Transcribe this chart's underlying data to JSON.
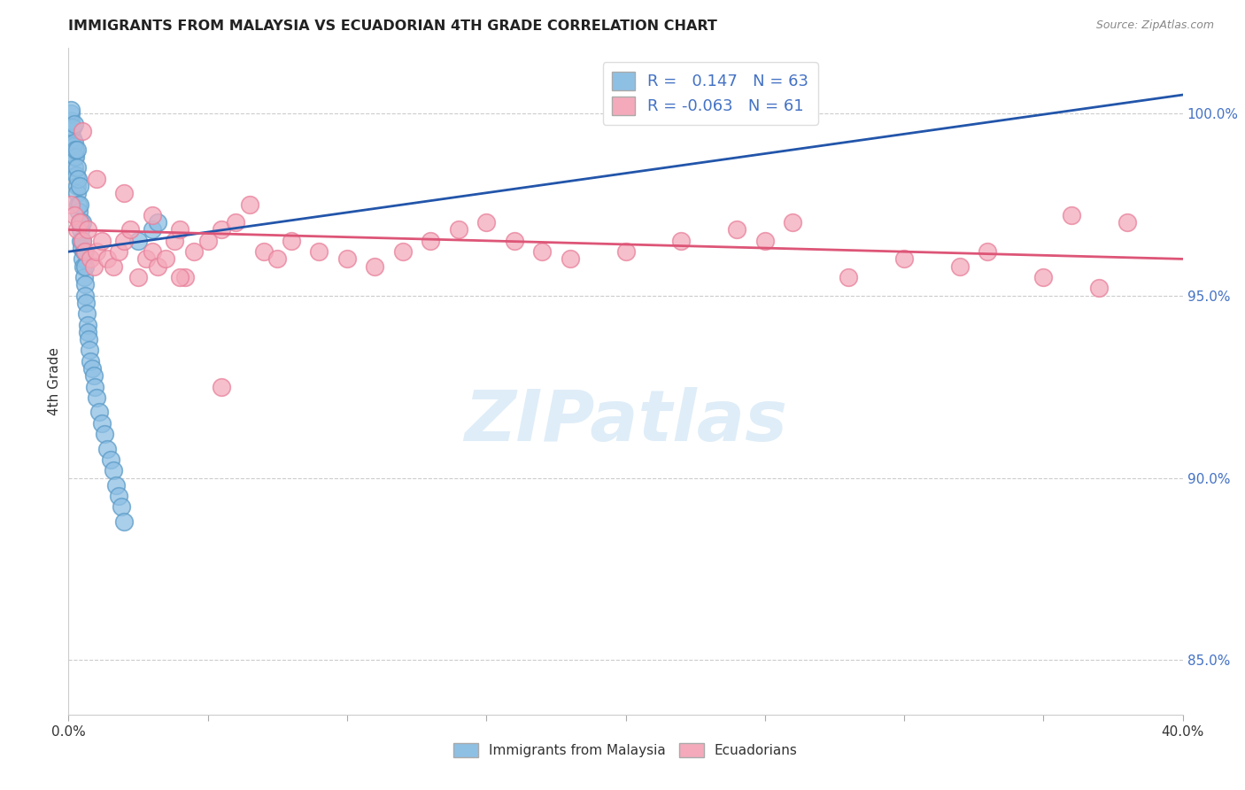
{
  "title": "IMMIGRANTS FROM MALAYSIA VS ECUADORIAN 4TH GRADE CORRELATION CHART",
  "source": "Source: ZipAtlas.com",
  "ylabel": "4th Grade",
  "yticks": [
    85.0,
    90.0,
    95.0,
    100.0
  ],
  "ytick_labels": [
    "85.0%",
    "90.0%",
    "95.0%",
    "100.0%"
  ],
  "xmin": 0.0,
  "xmax": 40.0,
  "ymin": 83.5,
  "ymax": 101.8,
  "legend_label1": "Immigrants from Malaysia",
  "legend_label2": "Ecuadorians",
  "R1": 0.147,
  "N1": 63,
  "R2": -0.063,
  "N2": 61,
  "blue_color": "#8EC0E4",
  "pink_color": "#F4AABB",
  "blue_edge_color": "#5B9BC8",
  "pink_edge_color": "#E8809A",
  "blue_line_color": "#2255AA",
  "pink_line_color": "#DD5577",
  "blue_x": [
    0.05,
    0.08,
    0.1,
    0.1,
    0.1,
    0.12,
    0.15,
    0.15,
    0.18,
    0.2,
    0.2,
    0.2,
    0.22,
    0.25,
    0.25,
    0.28,
    0.3,
    0.3,
    0.3,
    0.32,
    0.35,
    0.35,
    0.38,
    0.4,
    0.4,
    0.4,
    0.42,
    0.45,
    0.45,
    0.48,
    0.5,
    0.5,
    0.5,
    0.52,
    0.55,
    0.55,
    0.58,
    0.6,
    0.6,
    0.62,
    0.65,
    0.68,
    0.7,
    0.72,
    0.75,
    0.8,
    0.85,
    0.9,
    0.95,
    1.0,
    1.1,
    1.2,
    1.3,
    1.4,
    1.5,
    1.6,
    1.7,
    1.8,
    1.9,
    2.0,
    2.5,
    3.0,
    3.2
  ],
  "blue_y": [
    99.2,
    99.5,
    99.8,
    100.0,
    100.1,
    99.0,
    99.3,
    99.6,
    99.1,
    98.8,
    99.2,
    99.7,
    98.5,
    98.8,
    99.0,
    98.3,
    98.0,
    98.5,
    99.0,
    97.8,
    97.5,
    98.2,
    97.3,
    97.0,
    97.5,
    98.0,
    96.8,
    96.5,
    97.0,
    96.3,
    96.0,
    96.5,
    97.0,
    95.8,
    95.5,
    96.2,
    95.3,
    95.0,
    95.8,
    94.8,
    94.5,
    94.2,
    94.0,
    93.8,
    93.5,
    93.2,
    93.0,
    92.8,
    92.5,
    92.2,
    91.8,
    91.5,
    91.2,
    90.8,
    90.5,
    90.2,
    89.8,
    89.5,
    89.2,
    88.8,
    96.5,
    96.8,
    97.0
  ],
  "pink_x": [
    0.1,
    0.2,
    0.3,
    0.4,
    0.5,
    0.6,
    0.7,
    0.8,
    0.9,
    1.0,
    1.2,
    1.4,
    1.6,
    1.8,
    2.0,
    2.2,
    2.5,
    2.8,
    3.0,
    3.2,
    3.5,
    3.8,
    4.0,
    4.2,
    4.5,
    5.0,
    5.5,
    6.0,
    6.5,
    7.0,
    7.5,
    8.0,
    9.0,
    10.0,
    11.0,
    12.0,
    13.0,
    14.0,
    15.0,
    16.0,
    17.0,
    18.0,
    20.0,
    22.0,
    24.0,
    25.0,
    26.0,
    28.0,
    30.0,
    32.0,
    33.0,
    35.0,
    36.0,
    37.0,
    38.0,
    0.5,
    1.0,
    2.0,
    3.0,
    4.0,
    5.5
  ],
  "pink_y": [
    97.5,
    97.2,
    96.8,
    97.0,
    96.5,
    96.2,
    96.8,
    96.0,
    95.8,
    96.2,
    96.5,
    96.0,
    95.8,
    96.2,
    96.5,
    96.8,
    95.5,
    96.0,
    96.2,
    95.8,
    96.0,
    96.5,
    96.8,
    95.5,
    96.2,
    96.5,
    96.8,
    97.0,
    97.5,
    96.2,
    96.0,
    96.5,
    96.2,
    96.0,
    95.8,
    96.2,
    96.5,
    96.8,
    97.0,
    96.5,
    96.2,
    96.0,
    96.2,
    96.5,
    96.8,
    96.5,
    97.0,
    95.5,
    96.0,
    95.8,
    96.2,
    95.5,
    97.2,
    95.2,
    97.0,
    99.5,
    98.2,
    97.8,
    97.2,
    95.5,
    92.5
  ],
  "blue_trendline_x": [
    0.0,
    40.0
  ],
  "blue_trendline_y": [
    96.2,
    100.5
  ],
  "pink_trendline_x": [
    0.0,
    40.0
  ],
  "pink_trendline_y": [
    96.8,
    96.0
  ]
}
